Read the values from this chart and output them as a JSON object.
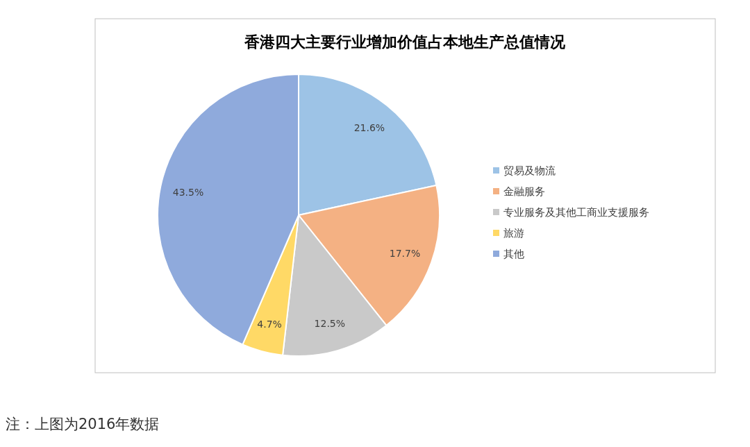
{
  "chart_data": {
    "type": "pie",
    "title": "香港四大主要行业增加价值占本地生产总值情况",
    "categories": [
      "贸易及物流",
      "金融服务",
      "专业服务及其他工商业支援服务",
      "旅游",
      "其他"
    ],
    "values": [
      21.6,
      17.7,
      12.5,
      4.7,
      43.5
    ],
    "colors": [
      "#9dc3e6",
      "#f4b183",
      "#c9c9c9",
      "#ffd966",
      "#8faadc"
    ],
    "value_labels": [
      "21.6%",
      "17.7%",
      "12.5%",
      "4.7%",
      "43.5%"
    ],
    "legend": "right",
    "annotations": [
      "注：上图为2016年数据"
    ]
  }
}
